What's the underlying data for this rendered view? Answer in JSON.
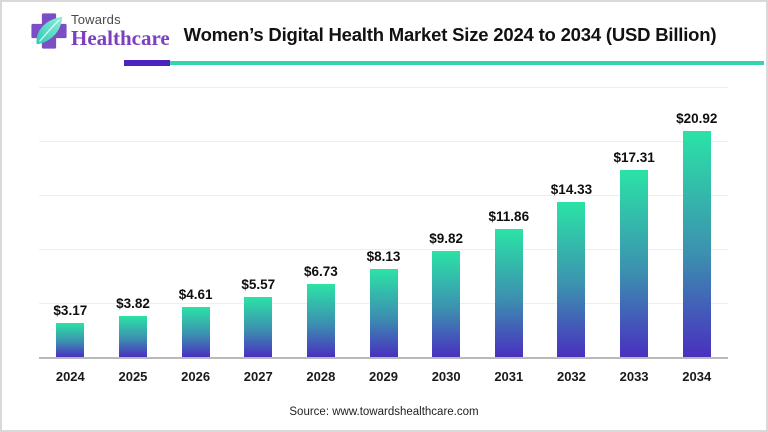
{
  "header": {
    "logo_top": "Towards",
    "logo_bottom": "Healthcare",
    "title": "Women’s Digital Health Market Size 2024 to 2034 (USD Billion)"
  },
  "chart_data": {
    "type": "bar",
    "title": "Women’s Digital Health Market Size 2024 to 2034 (USD Billion)",
    "categories": [
      "2024",
      "2025",
      "2026",
      "2027",
      "2028",
      "2029",
      "2030",
      "2031",
      "2032",
      "2033",
      "2034"
    ],
    "values": [
      3.17,
      3.82,
      4.61,
      5.57,
      6.73,
      8.13,
      9.82,
      11.86,
      14.33,
      17.31,
      20.92
    ],
    "value_labels": [
      "$3.17",
      "$3.82",
      "$4.61",
      "$5.57",
      "$6.73",
      "$8.13",
      "$9.82",
      "$11.86",
      "$14.33",
      "$17.31",
      "$20.92"
    ],
    "unit": "USD Billion",
    "ylim": [
      0,
      25
    ],
    "gridline_values": [
      5,
      10,
      15,
      20,
      25
    ],
    "grid": "horizontal-light",
    "legend_position": "none",
    "bar_color_top": "#2BE3A6",
    "bar_color_mid": "#3C8FB0",
    "bar_color_bottom": "#4930BF"
  },
  "footer": {
    "source": "Source: www.towardshealthcare.com"
  },
  "colors": {
    "accent_purple": "#4B24BE",
    "accent_teal": "#35D4B0",
    "logo_purple": "#7B3FC0",
    "logo_text_gray": "#4A4A4A",
    "axis_line": "#B9B9B9",
    "gridline": "#EFEFEF",
    "title_text": "#121212"
  }
}
